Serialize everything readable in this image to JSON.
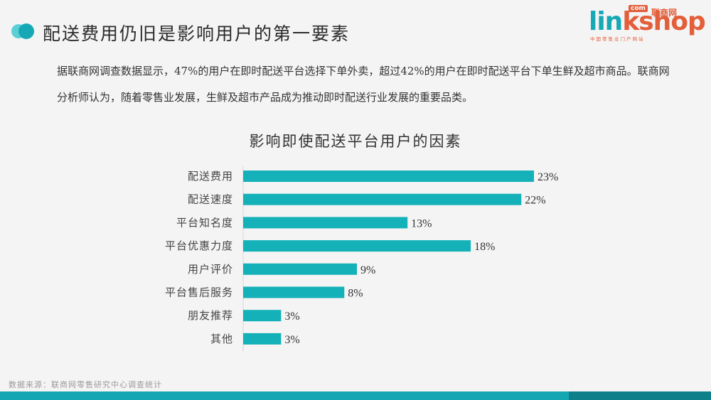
{
  "header": {
    "title": "配送费用仍旧是影响用户的第一要素",
    "logo": {
      "word_a": "lin",
      "word_b": "kshop",
      "com": "com",
      "cn": "联商网",
      "tagline": "中国零售业门户网站"
    }
  },
  "body": {
    "paragraph": "据联商网调查数据显示，47%的用户在即时配送平台选择下单外卖，超过42%的用户在即时配送平台下单生鲜及超市商品。联商网分析师认为，随着零售业发展，生鲜及超市产品成为推动即时配送行业发展的重要品类。"
  },
  "source": "数据来源：联商网零售研究中心调查统计",
  "colors": {
    "bar": "#14b1b8",
    "accent": "#16a9b5",
    "logo_orange": "#e35e3a"
  },
  "chart_data": {
    "type": "bar",
    "orientation": "horizontal",
    "title": "影响即使配送平台用户的因素",
    "categories": [
      "配送费用",
      "配送速度",
      "平台知名度",
      "平台优惠力度",
      "用户评价",
      "平台售后服务",
      "朋友推荐",
      "其他"
    ],
    "values": [
      23,
      22,
      13,
      18,
      9,
      8,
      3,
      3
    ],
    "value_format": "percent",
    "xlim": [
      0,
      23
    ],
    "grid": false,
    "legend": "none"
  }
}
